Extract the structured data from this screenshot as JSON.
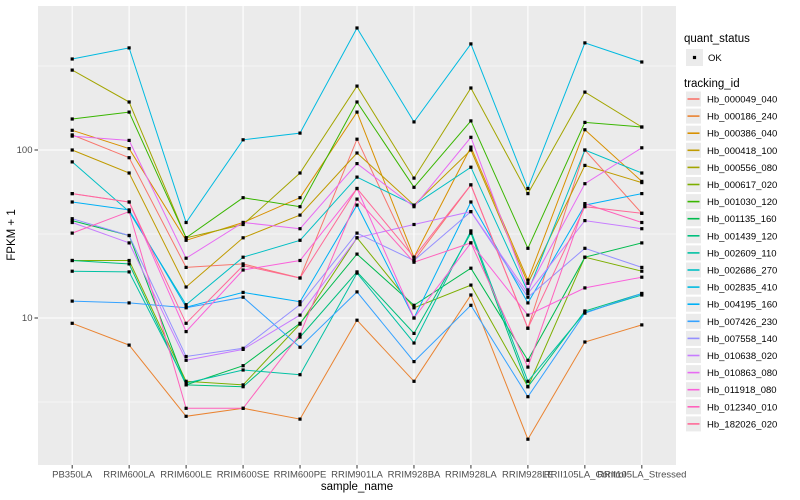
{
  "chart_data": {
    "type": "line",
    "xlabel": "sample_name",
    "ylabel": "FPKM + 1",
    "y_scale": "log10",
    "y_ticks": [
      100,
      10
    ],
    "y_tick_labels": [
      "100",
      "10"
    ],
    "y_minor_ticks": [
      316.2,
      31.62,
      3.162
    ],
    "ylim": [
      1.33,
      720
    ],
    "grid": "on",
    "legend_position": "right",
    "panel_bg": "#EBEBEB",
    "grid_color": "#FFFFFF",
    "point_color": "#000000",
    "categories": [
      "PB350LA",
      "RRIM600LA",
      "RRIM600LE",
      "RRIM600SE",
      "RRIM600PE",
      "RRIM901LA",
      "RRIM928BA",
      "RRIM928LA",
      "RRIM928LE",
      "RRII105LA_Control",
      "RRII105LA_Stressed"
    ],
    "legend": {
      "quant_status_title": "quant_status",
      "quant_status_items": [
        {
          "label": "OK",
          "shape": "point"
        }
      ],
      "tracking_id_title": "tracking_id"
    },
    "series": [
      {
        "name": "Hb_000049_040",
        "color": "#F8766D",
        "values": [
          123,
          90,
          20,
          21,
          17.3,
          116,
          22,
          62,
          8.7,
          100,
          42
        ]
      },
      {
        "name": "Hb_000186_240",
        "color": "#EA8331",
        "values": [
          9.3,
          6.9,
          2.6,
          2.9,
          2.5,
          9.7,
          4.2,
          13.7,
          1.9,
          7.2,
          9.1
        ]
      },
      {
        "name": "Hb_000386_040",
        "color": "#D89000",
        "values": [
          131,
          102,
          29,
          37,
          52,
          168,
          23,
          104,
          16.8,
          132,
          65
        ]
      },
      {
        "name": "Hb_000418_100",
        "color": "#C09B00",
        "values": [
          100,
          73,
          15.3,
          30,
          41,
          96,
          47,
          100,
          16.1,
          81,
          64
        ]
      },
      {
        "name": "Hb_000556_080",
        "color": "#A3A500",
        "values": [
          299,
          193,
          30,
          36,
          73,
          240,
          68,
          234,
          55,
          221,
          137
        ]
      },
      {
        "name": "Hb_000617_020",
        "color": "#7CAE00",
        "values": [
          22,
          22,
          4.2,
          4.0,
          9.2,
          30,
          11.5,
          15.7,
          3.9,
          23,
          19
        ]
      },
      {
        "name": "Hb_001030_120",
        "color": "#39B600",
        "values": [
          153,
          168,
          30,
          52,
          46,
          193,
          60,
          149,
          26,
          146,
          137
        ]
      },
      {
        "name": "Hb_001135_160",
        "color": "#00BB4E",
        "values": [
          38,
          31,
          4.0,
          5.2,
          9.3,
          24,
          11.9,
          19.8,
          5.6,
          23,
          28
        ]
      },
      {
        "name": "Hb_001439_120",
        "color": "#00BF7D",
        "values": [
          22,
          21,
          4.0,
          3.9,
          7.7,
          18.8,
          8.1,
          32,
          3.9,
          11,
          14
        ]
      },
      {
        "name": "Hb_002609_110",
        "color": "#00C1A3",
        "values": [
          19,
          18.8,
          4.1,
          4.9,
          4.6,
          18.5,
          7.1,
          33,
          4.2,
          10.8,
          13.7
        ]
      },
      {
        "name": "Hb_002686_270",
        "color": "#00BFC4",
        "values": [
          85,
          43,
          12,
          23,
          29,
          69,
          47,
          79,
          14.3,
          100,
          73
        ]
      },
      {
        "name": "Hb_002835_410",
        "color": "#00BAE0",
        "values": [
          348,
          405,
          37,
          115,
          126,
          532,
          147,
          428,
          59,
          434,
          334
        ]
      },
      {
        "name": "Hb_004195_160",
        "color": "#00B0F6",
        "values": [
          49,
          44,
          11.6,
          14.2,
          12.5,
          47,
          10,
          49,
          12.3,
          47,
          55
        ]
      },
      {
        "name": "Hb_007426_230",
        "color": "#35A2FF",
        "values": [
          12.6,
          12.3,
          11.5,
          13.3,
          6.7,
          14.3,
          5.5,
          11.9,
          3.4,
          10.7,
          14
        ]
      },
      {
        "name": "Hb_007558_140",
        "color": "#9590FF",
        "values": [
          39,
          31,
          5.9,
          6.6,
          12,
          32,
          22,
          43,
          13.3,
          26,
          20
        ]
      },
      {
        "name": "Hb_010638_020",
        "color": "#C77CFF",
        "values": [
          37,
          28,
          5.6,
          6.5,
          10.4,
          30,
          36,
          43,
          14,
          38,
          34
        ]
      },
      {
        "name": "Hb_010863_080",
        "color": "#E76BF3",
        "values": [
          121,
          114,
          22.7,
          37,
          34,
          83,
          46,
          119,
          14.7,
          63,
          103
        ]
      },
      {
        "name": "Hb_011918_080",
        "color": "#FA62DB",
        "values": [
          55,
          49,
          8.3,
          19.3,
          22,
          59,
          10,
          28,
          10.4,
          15.1,
          17.5
        ]
      },
      {
        "name": "Hb_012340_010",
        "color": "#FF62BC",
        "values": [
          32,
          43,
          2.9,
          2.9,
          8,
          51,
          21.5,
          28,
          5.1,
          48,
          37
        ]
      },
      {
        "name": "Hb_182026_020",
        "color": "#FF6A98",
        "values": [
          55,
          49,
          9.3,
          20.5,
          17.3,
          59,
          23,
          62,
          8.7,
          46,
          42
        ]
      }
    ]
  }
}
